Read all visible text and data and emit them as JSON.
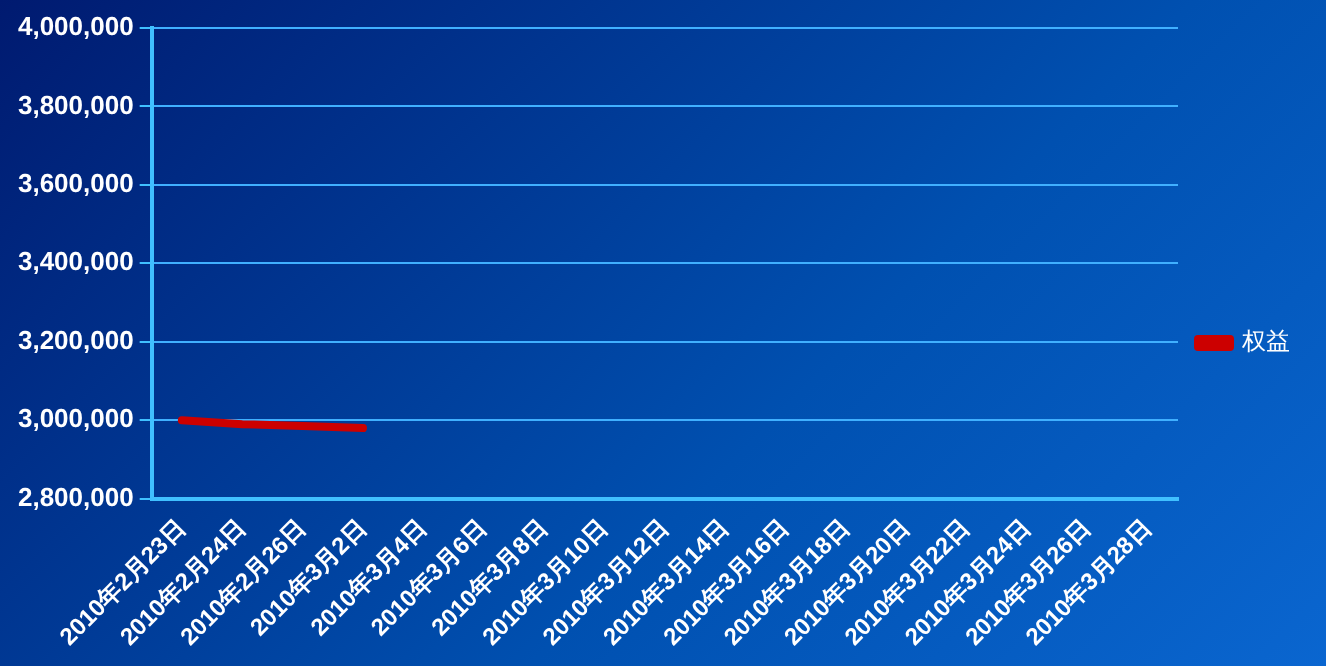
{
  "chart_data": {
    "type": "line",
    "categories": [
      "2010年2月23日",
      "2010年2月24日",
      "2010年2月26日",
      "2010年3月2日",
      "2010年3月4日",
      "2010年3月6日",
      "2010年3月8日",
      "2010年3月10日",
      "2010年3月12日",
      "2010年3月14日",
      "2010年3月16日",
      "2010年3月18日",
      "2010年3月20日",
      "2010年3月22日",
      "2010年3月24日",
      "2010年3月26日",
      "2010年3月28日"
    ],
    "series": [
      {
        "name": "权益",
        "color": "#cc0000",
        "values": [
          3000000,
          2990000,
          2985000,
          2980000,
          null,
          null,
          null,
          null,
          null,
          null,
          null,
          null,
          null,
          null,
          null,
          null,
          null
        ]
      }
    ],
    "ylim": [
      2800000,
      4000000
    ],
    "yticks": [
      {
        "value": 2800000,
        "label": "2,800,000"
      },
      {
        "value": 3000000,
        "label": "3,000,000"
      },
      {
        "value": 3200000,
        "label": "3,200,000"
      },
      {
        "value": 3400000,
        "label": "3,400,000"
      },
      {
        "value": 3600000,
        "label": "3,600,000"
      },
      {
        "value": 3800000,
        "label": "3,800,000"
      },
      {
        "value": 4000000,
        "label": "4,000,000"
      }
    ],
    "grid": "y",
    "legend": "right",
    "marker": "none",
    "line_style": "solid"
  }
}
